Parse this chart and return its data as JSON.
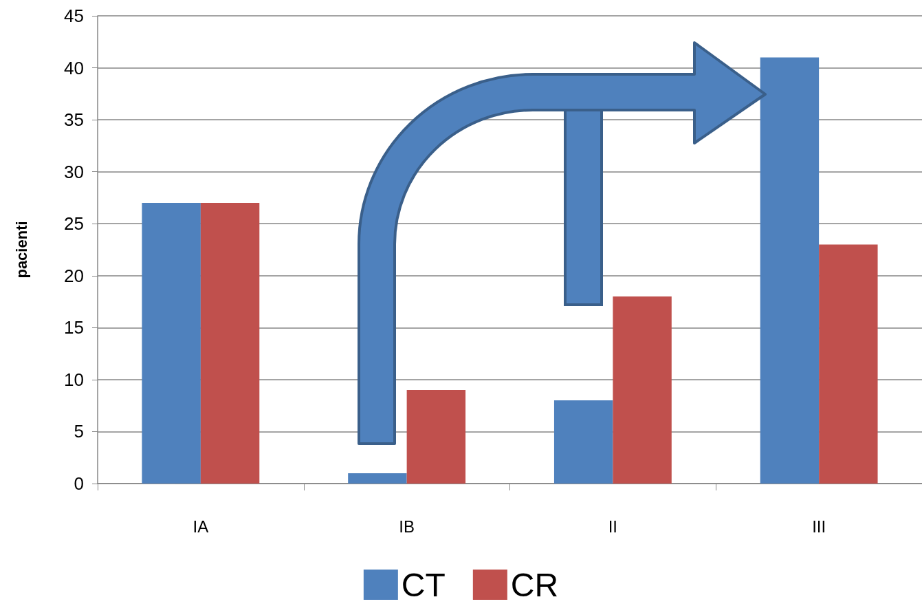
{
  "chart_data": {
    "type": "bar",
    "ylabel": "pacienti",
    "categories": [
      "IA",
      "IB",
      "II",
      "III"
    ],
    "series": [
      {
        "name": "CT",
        "color": "#4f81bd",
        "values": [
          27,
          1,
          8,
          41
        ]
      },
      {
        "name": "CR",
        "color": "#c0504d",
        "values": [
          27,
          9,
          18,
          23
        ]
      }
    ],
    "ylim": [
      0,
      45
    ],
    "yticks": [
      0,
      5,
      10,
      15,
      20,
      25,
      30,
      35,
      40,
      45
    ],
    "grid": "y",
    "legend": "bottom"
  }
}
